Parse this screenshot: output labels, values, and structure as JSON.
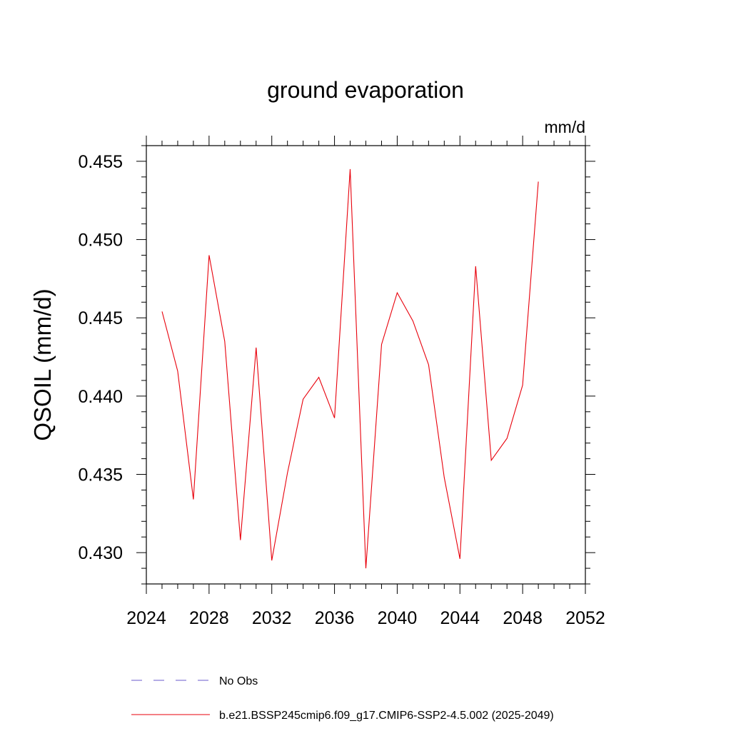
{
  "chart_data": {
    "type": "line",
    "title": "ground evaporation",
    "units": "mm/d",
    "ylabel": "QSOIL  (mm/d)",
    "xlabel": "",
    "xlim": [
      2024,
      2052
    ],
    "ylim": [
      0.428,
      0.456
    ],
    "x_major_ticks": [
      2024,
      2028,
      2032,
      2036,
      2040,
      2044,
      2048,
      2052
    ],
    "x_tick_labels": [
      "2024",
      "2028",
      "2032",
      "2036",
      "2040",
      "2044",
      "2048",
      "2052"
    ],
    "y_major_ticks": [
      0.43,
      0.435,
      0.44,
      0.445,
      0.45,
      0.455
    ],
    "y_tick_labels": [
      "0.430",
      "0.435",
      "0.440",
      "0.445",
      "0.450",
      "0.455"
    ],
    "grid": false,
    "legend_placement": "bottom",
    "legend": [
      {
        "label": "No Obs",
        "color": "#6a5acd",
        "style": "dashed"
      },
      {
        "label": "b.e21.BSSP245cmip6.f09_g17.CMIP6-SSP2-4.5.002 (2025-2049)",
        "color": "#e8000b",
        "style": "solid"
      }
    ],
    "series": [
      {
        "color": "#e8000b",
        "x": [
          2025,
          2026,
          2027,
          2028,
          2029,
          2030,
          2031,
          2032,
          2033,
          2034,
          2035,
          2036,
          2037,
          2038,
          2039,
          2040,
          2041,
          2042,
          2043,
          2044,
          2045,
          2046,
          2047,
          2048,
          2049
        ],
        "y": [
          0.4454,
          0.4416,
          0.4334,
          0.449,
          0.4435,
          0.4308,
          0.4431,
          0.4295,
          0.4351,
          0.4398,
          0.4412,
          0.4386,
          0.4545,
          0.429,
          0.4433,
          0.4466,
          0.4448,
          0.442,
          0.4348,
          0.4296,
          0.4483,
          0.4359,
          0.4373,
          0.4407,
          0.4537
        ]
      }
    ]
  }
}
